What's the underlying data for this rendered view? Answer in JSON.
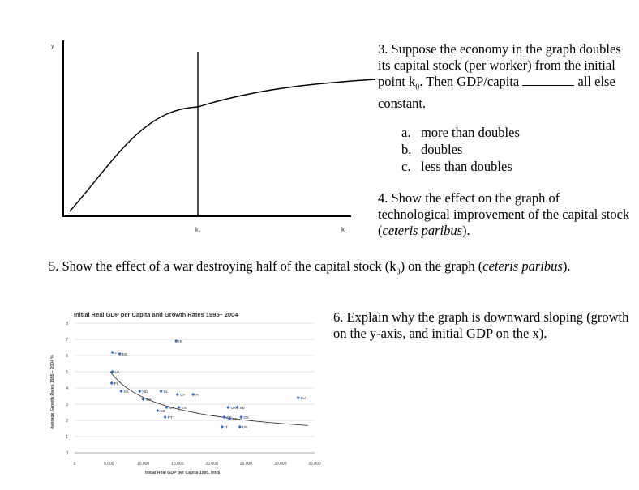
{
  "graph1": {
    "y_label": "y",
    "k0_label": "k₀",
    "k_label": "k"
  },
  "q3": {
    "before_sub": "3. Suppose the economy in the graph doubles its capital stock (per worker) from the initial point k",
    "sub": "0",
    "after_sub": ". Then GDP/capita ",
    "after_blank": " all else constant."
  },
  "options": [
    {
      "letter": "a.",
      "text": "more than doubles"
    },
    {
      "letter": "b.",
      "text": "doubles"
    },
    {
      "letter": "c.",
      "text": "less than doubles"
    }
  ],
  "q4": {
    "lead": "4. Show the effect on the graph of technological improvement of the capital stock (",
    "italic": "ceteris paribus",
    "tail": ")."
  },
  "q5": {
    "lead": "5. Show the effect of a war destroying half of the capital stock (k",
    "sub": "0",
    "mid": ") on the graph (",
    "italic": "ceteris paribus",
    "tail": ")."
  },
  "q6": {
    "text": "6. Explain why the graph is downward sloping (growth on the y-axis, and initial GDP on the x)."
  },
  "chart_data": {
    "type": "scatter",
    "title": "Initial Real GDP per Capita and Growth Rates 1995– 2004",
    "xlabel": "Initial Real GDP per Capita 1995, Int-$",
    "ylabel": "Average Growth Rates 1995 – 2004 %",
    "xlim": [
      0,
      35000
    ],
    "ylim": [
      0,
      8
    ],
    "x_ticks": [
      "0",
      "5.000",
      "10.000",
      "15.000",
      "20.000",
      "25.000",
      "30.000",
      "35.000"
    ],
    "y_ticks": [
      "0",
      "1",
      "2",
      "3",
      "4",
      "5",
      "6",
      "7",
      "8"
    ],
    "grid": true,
    "trendline": "power",
    "points": [
      {
        "label": "IE",
        "x": 14800,
        "y": 6.9
      },
      {
        "label": "LT",
        "x": 5500,
        "y": 6.2
      },
      {
        "label": "EE",
        "x": 6600,
        "y": 6.1
      },
      {
        "label": "LV",
        "x": 5500,
        "y": 5.0
      },
      {
        "label": "PL",
        "x": 5400,
        "y": 4.3
      },
      {
        "label": "SK",
        "x": 6800,
        "y": 3.8
      },
      {
        "label": "HU",
        "x": 9500,
        "y": 3.8
      },
      {
        "label": "SL",
        "x": 12600,
        "y": 3.8
      },
      {
        "label": "CY",
        "x": 15000,
        "y": 3.6
      },
      {
        "label": "FI",
        "x": 17300,
        "y": 3.6
      },
      {
        "label": "LU",
        "x": 32600,
        "y": 3.4
      },
      {
        "label": "GR",
        "x": 10000,
        "y": 3.3
      },
      {
        "label": "MT",
        "x": 13400,
        "y": 2.8
      },
      {
        "label": "ES",
        "x": 15200,
        "y": 2.8
      },
      {
        "label": "CZ",
        "x": 12100,
        "y": 2.6
      },
      {
        "label": "PT",
        "x": 13200,
        "y": 2.2
      },
      {
        "label": "UK",
        "x": 22400,
        "y": 2.8
      },
      {
        "label": "SE",
        "x": 23700,
        "y": 2.8
      },
      {
        "label": "FR",
        "x": 21800,
        "y": 2.2
      },
      {
        "label": "AT",
        "x": 22600,
        "y": 2.1
      },
      {
        "label": "DK",
        "x": 24300,
        "y": 2.2
      },
      {
        "label": "IT",
        "x": 21500,
        "y": 1.6
      },
      {
        "label": "DE",
        "x": 24100,
        "y": 1.6
      }
    ]
  }
}
